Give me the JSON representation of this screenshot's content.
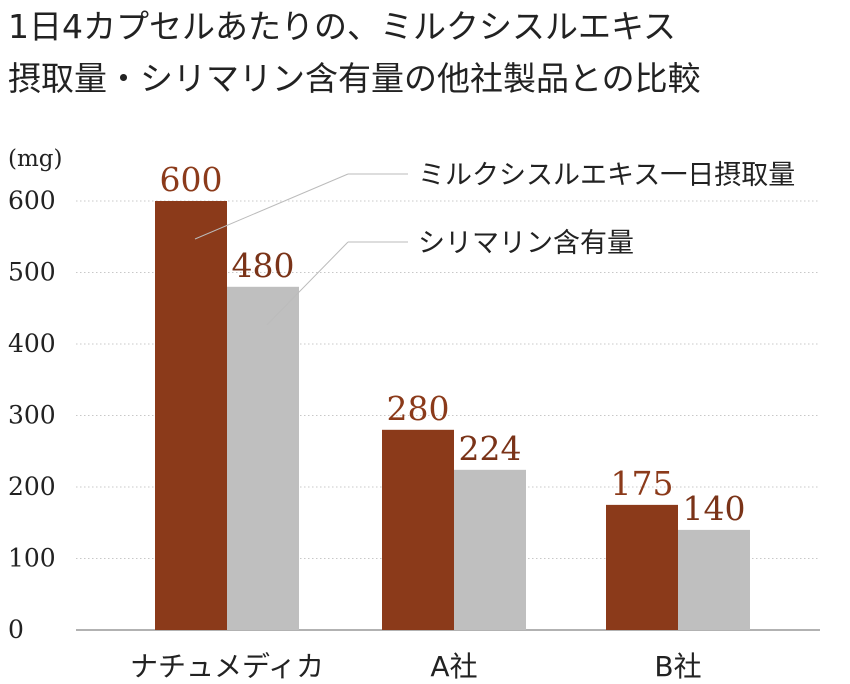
{
  "chart_data": {
    "type": "bar",
    "title_lines": [
      "1日4カプセルあたりの、ミルクシスルエキス",
      "摂取量・シリマリン含有量の他社製品との比較"
    ],
    "ylabel": "(mg)",
    "ylim": [
      0,
      600
    ],
    "yticks": [
      0,
      100,
      200,
      300,
      400,
      500,
      600
    ],
    "categories": [
      "ナチュメディカ",
      "A社",
      "B社"
    ],
    "series": [
      {
        "name": "ミルクシスルエキス一日摂取量",
        "values": [
          600,
          280,
          175
        ],
        "color": "#8B3A1A",
        "label_color": "#8B3A1A"
      },
      {
        "name": "シリマリン含有量",
        "values": [
          480,
          224,
          140
        ],
        "color": "#BFBFBF",
        "label_color": "#7A3318"
      }
    ],
    "grid": true,
    "legend": "callout"
  }
}
